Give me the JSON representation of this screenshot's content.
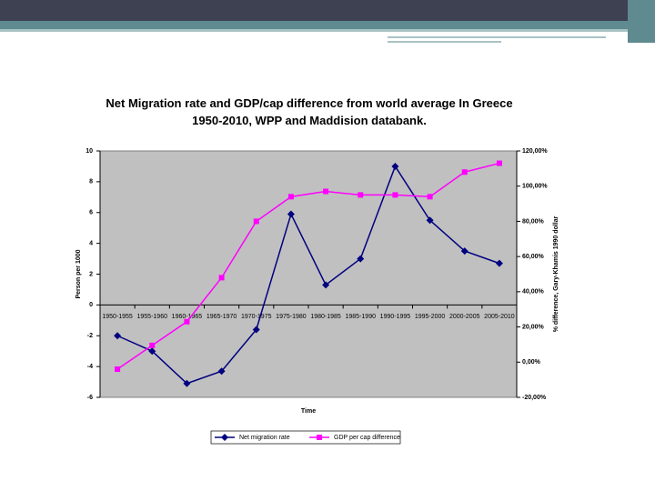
{
  "chart_data": {
    "type": "line",
    "title": "Net Migration rate and GDP/cap difference from world average In Greece 1950-2010, WPP and Maddision databank.",
    "x_label": "Time",
    "y_label": "Person per 1000",
    "y2_label": "% difference, Gary-Khamis 1990 dollar",
    "categories": [
      "1950-1955",
      "1955-1960",
      "1960-1965",
      "1965-1970",
      "1970-1975",
      "1975-1980",
      "1980-1985",
      "1985-1990",
      "1990-1995",
      "1995-2000",
      "2000-2005",
      "2005-2010"
    ],
    "series": [
      {
        "name": "Net migration rate",
        "color": "#000080",
        "marker": "diamond",
        "values": [
          -2,
          -3,
          -5.1,
          -4.3,
          -1.6,
          5.9,
          1.3,
          3.0,
          9.0,
          5.5,
          3.5,
          2.7
        ]
      },
      {
        "name": "GDP per cap difference",
        "color": "#ff00ff",
        "marker": "square",
        "axis": "y2",
        "values": [
          -4,
          9.5,
          23,
          48,
          80,
          94,
          97,
          95,
          95,
          94,
          108,
          113
        ]
      }
    ],
    "ylim": [
      -6,
      10
    ],
    "yticks": [
      -6,
      -4,
      -2,
      0,
      2,
      4,
      6,
      8,
      10
    ],
    "y2lim": [
      -20,
      120
    ],
    "y2ticks": [
      {
        "value": -20,
        "label": "-20,00%"
      },
      {
        "value": 0,
        "label": "0,00%"
      },
      {
        "value": 20,
        "label": "20,00%"
      },
      {
        "value": 40,
        "label": "40,00%"
      },
      {
        "value": 60,
        "label": "60,00%"
      },
      {
        "value": 80,
        "label": "80,00%"
      },
      {
        "value": 100,
        "label": "100,00%"
      },
      {
        "value": 120,
        "label": "120,00%"
      }
    ],
    "legend": "bottom"
  }
}
